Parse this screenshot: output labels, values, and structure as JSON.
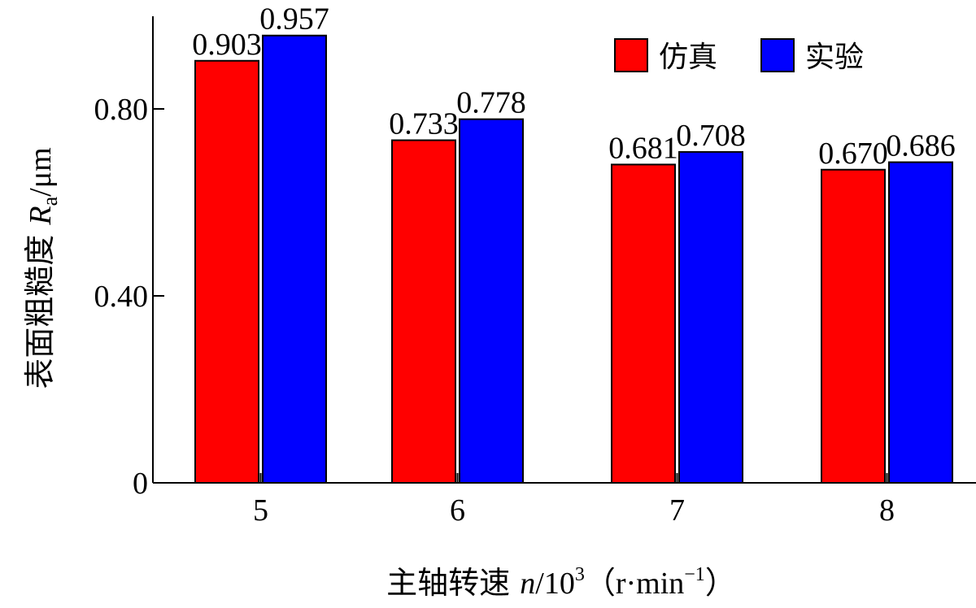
{
  "chart_data": {
    "type": "bar",
    "categories": [
      "5",
      "6",
      "7",
      "8"
    ],
    "series": [
      {
        "name": "仿真",
        "color": "#ff0000",
        "values": [
          0.903,
          0.733,
          0.681,
          0.67
        ],
        "labels": [
          "0.903",
          "0.733",
          "0.681",
          "0.670"
        ]
      },
      {
        "name": "实验",
        "color": "#0000ff",
        "values": [
          0.957,
          0.778,
          0.708,
          0.686
        ],
        "labels": [
          "0.957",
          "0.778",
          "0.708",
          "0.686"
        ]
      }
    ],
    "yticks": [
      {
        "value": 0,
        "label": "0"
      },
      {
        "value": 0.4,
        "label": "0.40"
      },
      {
        "value": 0.8,
        "label": "0.80"
      }
    ],
    "ylim": [
      0,
      0.99
    ],
    "ylabel": {
      "prefix": "表面粗糙度 ",
      "var": "R",
      "sub": "a",
      "unit": "/μm"
    },
    "xlabel": {
      "prefix": "主轴转速 ",
      "var": "n",
      "mid": "/10",
      "sup1": "3",
      "unit": "（r·min",
      "sup2": "−1",
      "close": "）"
    },
    "legend_position": "top-right",
    "grid": false
  }
}
